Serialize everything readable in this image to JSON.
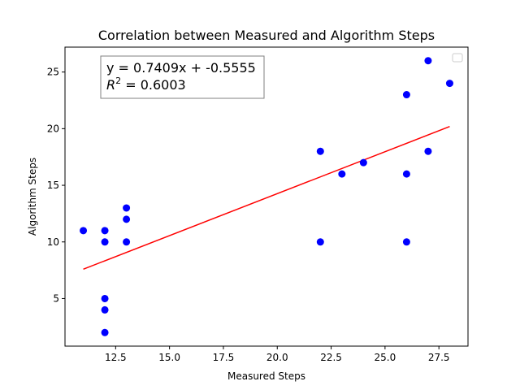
{
  "chart_data": {
    "type": "scatter",
    "title": "Correlation between Measured and Algorithm Steps",
    "xlabel": "Measured Steps",
    "ylabel": "Algorithm Steps",
    "xlim": [
      10.15,
      28.85
    ],
    "ylim": [
      0.8,
      27.2
    ],
    "xticks": [
      12.5,
      15.0,
      17.5,
      20.0,
      22.5,
      25.0,
      27.5
    ],
    "xtick_labels": [
      "12.5",
      "15.0",
      "17.5",
      "20.0",
      "22.5",
      "25.0",
      "27.5"
    ],
    "yticks": [
      5,
      10,
      15,
      20,
      25
    ],
    "ytick_labels": [
      "5",
      "10",
      "15",
      "20",
      "25"
    ],
    "grid": false,
    "legend": "top-right",
    "series": [
      {
        "kind": "points",
        "color": "#0000ff",
        "x": [
          11,
          12,
          12,
          12,
          12,
          12,
          13,
          13,
          13,
          22,
          22,
          23,
          24,
          26,
          26,
          26,
          27,
          27,
          28
        ],
        "y": [
          11,
          11,
          10,
          5,
          4,
          2,
          13,
          12,
          10,
          18,
          10,
          16,
          17,
          23,
          16,
          10,
          26,
          18,
          24
        ]
      },
      {
        "kind": "fit-line",
        "color": "#ff0000",
        "slope": 0.7409,
        "intercept": -0.5555,
        "x_range": [
          11,
          28
        ]
      }
    ],
    "annotation": {
      "line1": "y = 0.7409x + -0.5555",
      "line2_prefix": "R",
      "line2_sup": "2",
      "line2_suffix": " = 0.6003",
      "position": "top-left"
    }
  }
}
